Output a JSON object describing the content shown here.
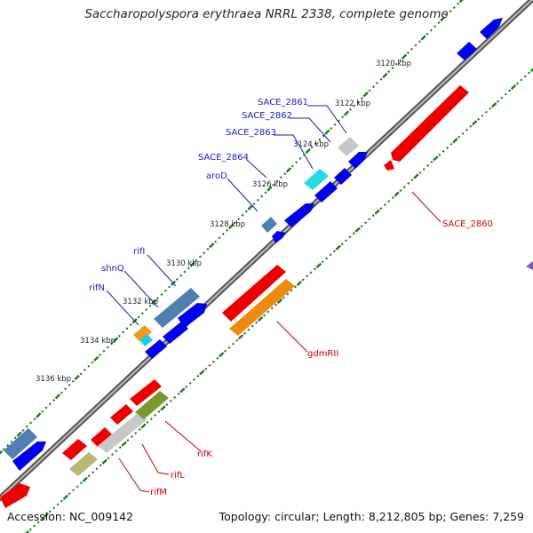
{
  "title": "Saccharopolyspora erythraea NRRL 2338, complete genome",
  "accession": "Accession: NC_009142",
  "topology": "Topology: circular; Length: 8,212,805 bp; Genes: 7,259",
  "colors": {
    "forward_gene": "#0000ee",
    "reverse_gene": "#ee0000",
    "label_blue": "#1a1acc",
    "label_red": "#cc0000",
    "tick_green": "#1a7a1a",
    "backbone": "#7a7a7a"
  },
  "kbp_ticks": [
    "3120 kbp",
    "3122 kbp",
    "3124 kbp",
    "3126 kbp",
    "3128 kbp",
    "3130 kbp",
    "3132 kbp",
    "3134 kbp",
    "3136 kbp"
  ],
  "blue_labels": [
    "SACE_2861",
    "SACE_2862",
    "SACE_2863",
    "SACE_2864",
    "aroD",
    "rifI",
    "shnQ",
    "rifN"
  ],
  "red_labels": [
    "SACE_2860",
    "gdmRII",
    "rifK",
    "rifL",
    "rifM"
  ]
}
